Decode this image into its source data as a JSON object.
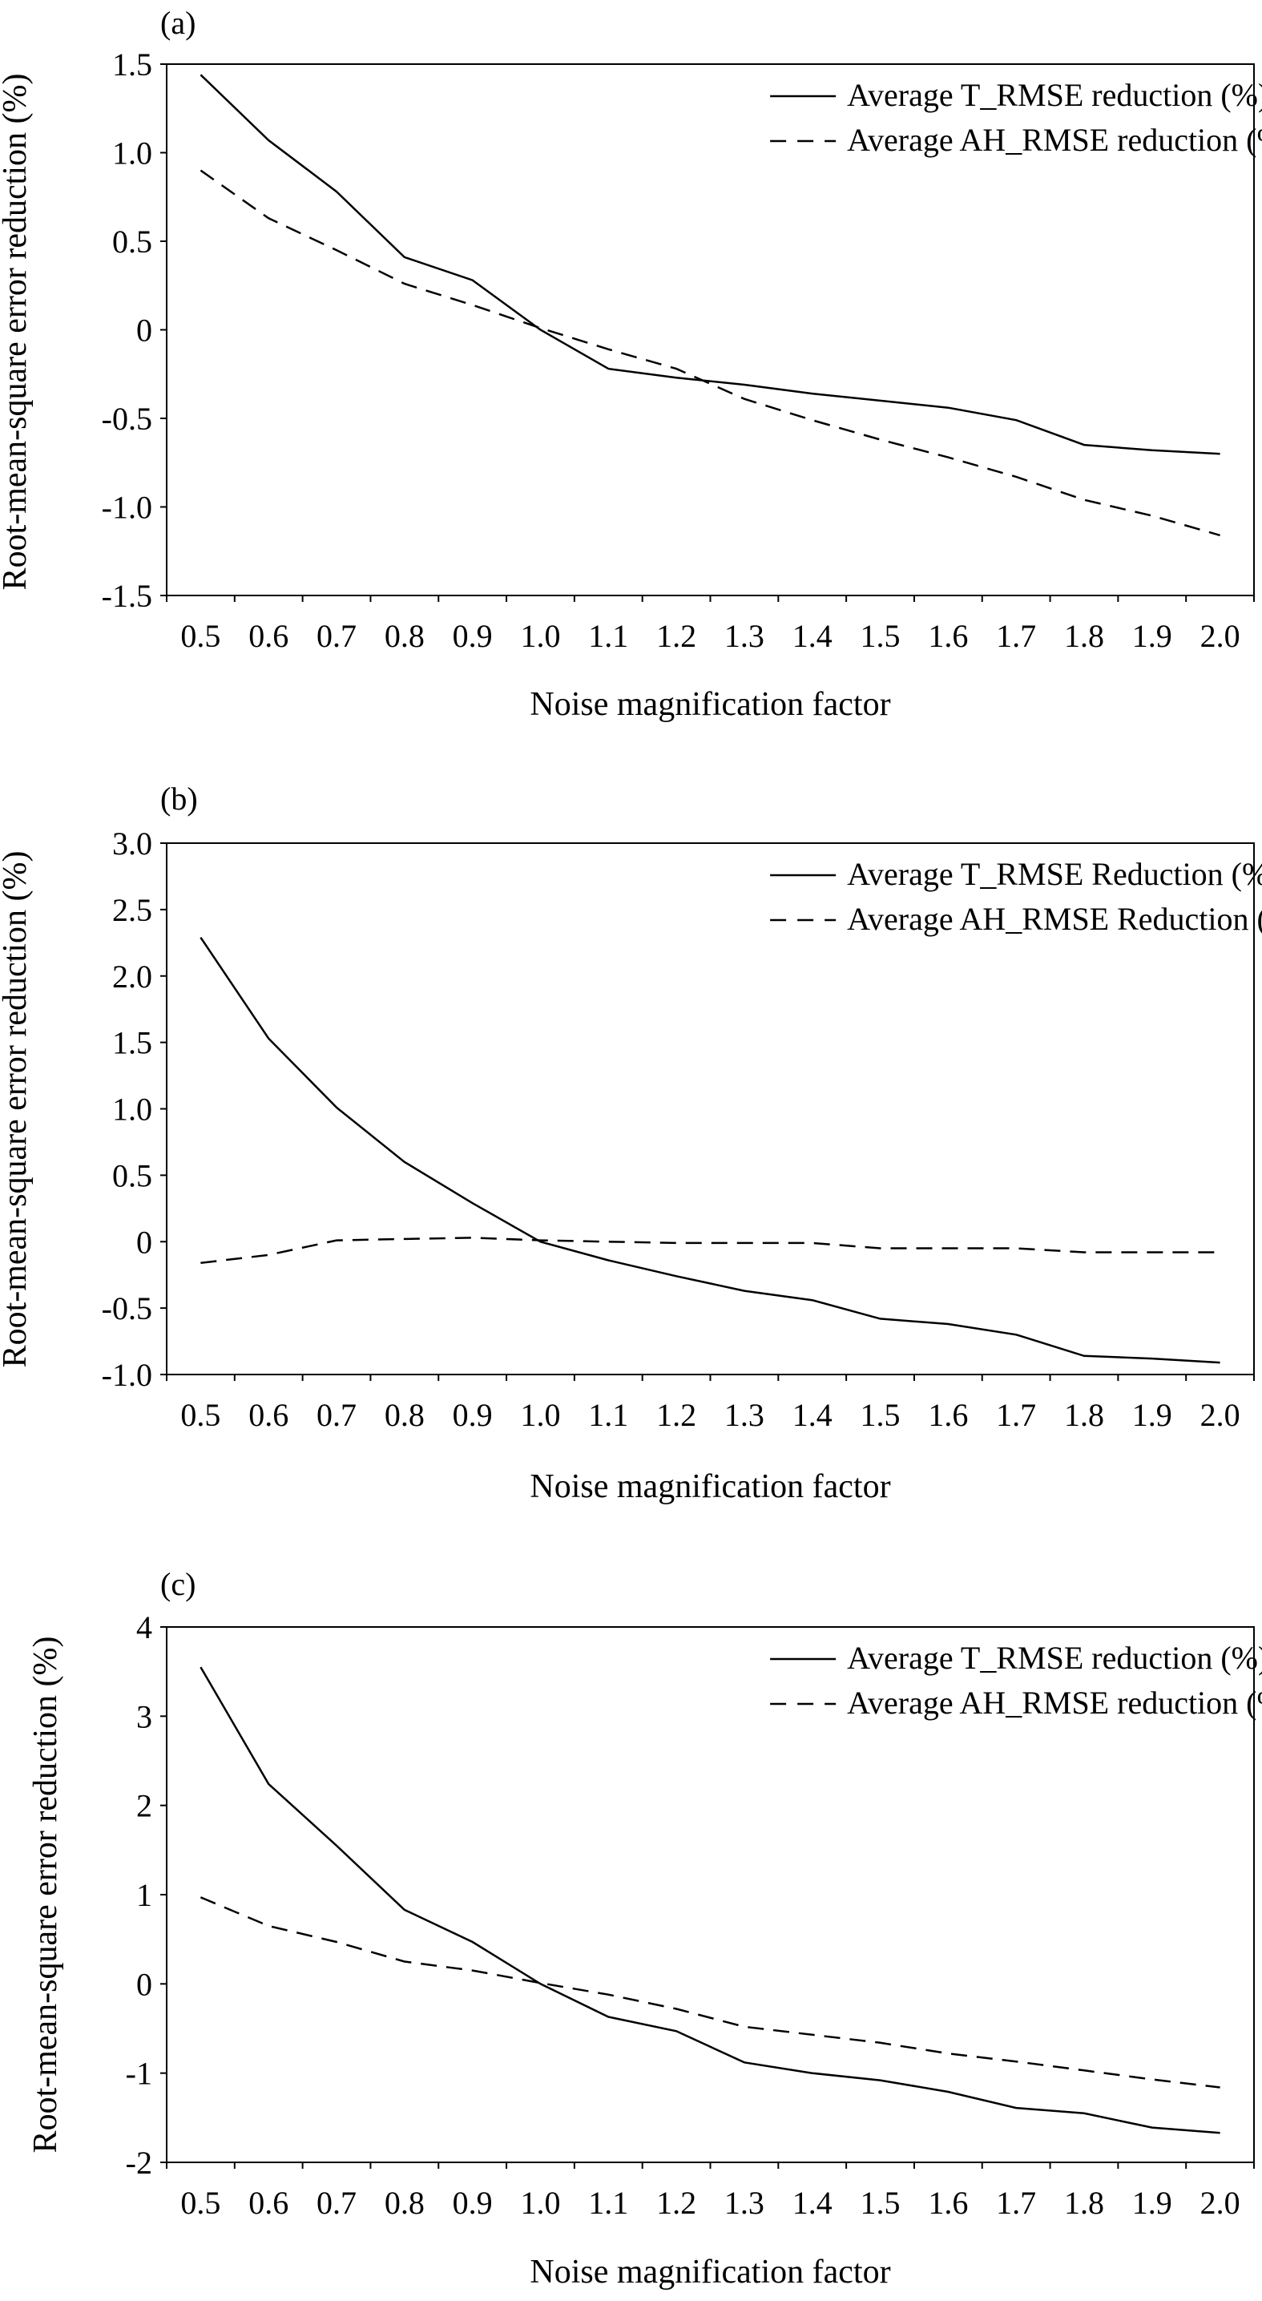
{
  "chart_data": [
    {
      "type": "line",
      "panel_label": "(a)",
      "xlabel": "Noise magnification factor",
      "ylabel": "Root-mean-square error reduction (%)",
      "x": [
        0.5,
        0.6,
        0.7,
        0.8,
        0.9,
        1.0,
        1.1,
        1.2,
        1.3,
        1.4,
        1.5,
        1.6,
        1.7,
        1.8,
        1.9,
        2.0
      ],
      "x_tick_labels": [
        "0.5",
        "0.6",
        "0.7",
        "0.8",
        "0.9",
        "1.0",
        "1.1",
        "1.2",
        "1.3",
        "1.4",
        "1.5",
        "1.6",
        "1.7",
        "1.8",
        "1.9",
        "2.0"
      ],
      "ylim": [
        -1.5,
        1.5
      ],
      "y_ticks": [
        1.5,
        1.0,
        0.5,
        0,
        -0.5,
        -1.0,
        -1.5
      ],
      "y_tick_labels": [
        "1.5",
        "1.0",
        "0.5",
        "0",
        "-0.5",
        "-1.0",
        "-1.5"
      ],
      "legend_position": "top-right",
      "grid": false,
      "series": [
        {
          "name": "Average T_RMSE reduction (%)",
          "style": "solid",
          "values": [
            1.44,
            1.07,
            0.78,
            0.41,
            0.28,
            0.0,
            -0.22,
            -0.27,
            -0.31,
            -0.36,
            -0.4,
            -0.44,
            -0.51,
            -0.65,
            -0.68,
            -0.7
          ]
        },
        {
          "name": "Average AH_RMSE reduction (%)",
          "style": "dashed",
          "values": [
            0.9,
            0.63,
            0.45,
            0.26,
            0.14,
            0.01,
            -0.11,
            -0.22,
            -0.39,
            -0.51,
            -0.62,
            -0.72,
            -0.83,
            -0.96,
            -1.05,
            -1.16
          ]
        }
      ]
    },
    {
      "type": "line",
      "panel_label": "(b)",
      "xlabel": "Noise magnification factor",
      "ylabel": "Root-mean-square error reduction (%)",
      "x": [
        0.5,
        0.6,
        0.7,
        0.8,
        0.9,
        1.0,
        1.1,
        1.2,
        1.3,
        1.4,
        1.5,
        1.6,
        1.7,
        1.8,
        1.9,
        2.0
      ],
      "x_tick_labels": [
        "0.5",
        "0.6",
        "0.7",
        "0.8",
        "0.9",
        "1.0",
        "1.1",
        "1.2",
        "1.3",
        "1.4",
        "1.5",
        "1.6",
        "1.7",
        "1.8",
        "1.9",
        "2.0"
      ],
      "ylim": [
        -1.0,
        3.0
      ],
      "y_ticks": [
        3.0,
        2.5,
        2.0,
        1.5,
        1.0,
        0.5,
        0,
        -0.5,
        -1.0
      ],
      "y_tick_labels": [
        "3.0",
        "2.5",
        "2.0",
        "1.5",
        "1.0",
        "0.5",
        "0",
        "-0.5",
        "-1.0"
      ],
      "legend_position": "top-right",
      "grid": false,
      "series": [
        {
          "name": "Average T_RMSE Reduction (%)",
          "style": "solid",
          "values": [
            2.29,
            1.53,
            1.01,
            0.6,
            0.29,
            0.0,
            -0.14,
            -0.26,
            -0.37,
            -0.44,
            -0.58,
            -0.62,
            -0.7,
            -0.86,
            -0.88,
            -0.91
          ]
        },
        {
          "name": "Average AH_RMSE Reduction (%)",
          "style": "dashed",
          "values": [
            -0.16,
            -0.1,
            0.01,
            0.02,
            0.03,
            0.01,
            0.0,
            -0.01,
            -0.01,
            -0.01,
            -0.05,
            -0.05,
            -0.05,
            -0.08,
            -0.08,
            -0.08
          ]
        }
      ]
    },
    {
      "type": "line",
      "panel_label": "(c)",
      "xlabel": "Noise magnification factor",
      "ylabel": "Root-mean-square error reduction (%)",
      "x": [
        0.5,
        0.6,
        0.7,
        0.8,
        0.9,
        1.0,
        1.1,
        1.2,
        1.3,
        1.4,
        1.5,
        1.6,
        1.7,
        1.8,
        1.9,
        2.0
      ],
      "x_tick_labels": [
        "0.5",
        "0.6",
        "0.7",
        "0.8",
        "0.9",
        "1.0",
        "1.1",
        "1.2",
        "1.3",
        "1.4",
        "1.5",
        "1.6",
        "1.7",
        "1.8",
        "1.9",
        "2.0"
      ],
      "ylim": [
        -2,
        4
      ],
      "y_ticks": [
        4,
        3,
        2,
        1,
        0,
        -1,
        -2
      ],
      "y_tick_labels": [
        "4",
        "3",
        "2",
        "1",
        "0",
        "-1",
        "-2"
      ],
      "legend_position": "top-right",
      "grid": false,
      "series": [
        {
          "name": "Average T_RMSE reduction (%)",
          "style": "solid",
          "values": [
            3.55,
            2.24,
            1.55,
            0.83,
            0.47,
            0.0,
            -0.37,
            -0.53,
            -0.88,
            -1.0,
            -1.08,
            -1.21,
            -1.39,
            -1.45,
            -1.61,
            -1.67
          ]
        },
        {
          "name": "Average AH_RMSE reduction (%)",
          "style": "dashed",
          "values": [
            0.97,
            0.65,
            0.47,
            0.25,
            0.15,
            0.01,
            -0.12,
            -0.28,
            -0.48,
            -0.57,
            -0.66,
            -0.78,
            -0.87,
            -0.97,
            -1.07,
            -1.16
          ]
        }
      ]
    }
  ]
}
